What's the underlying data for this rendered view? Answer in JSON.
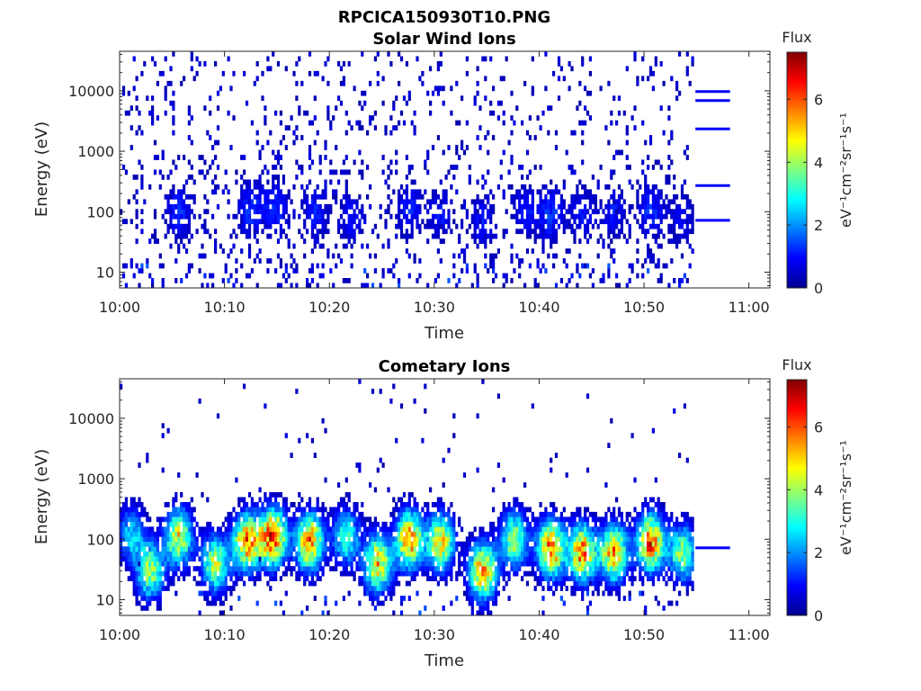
{
  "figure": {
    "title": "RPCICA150930T10.PNG"
  },
  "colormap": [
    "#00008F",
    "#0000FF",
    "#0080FF",
    "#00FFFF",
    "#80FF80",
    "#FFFF00",
    "#FF8000",
    "#FF0000",
    "#800000"
  ],
  "chart_data": [
    {
      "type": "heatmap",
      "title": "Solar Wind Ions",
      "xlabel": "Time",
      "ylabel": "Energy (eV)",
      "x_ticks": [
        "10:00",
        "10:10",
        "10:20",
        "10:30",
        "10:40",
        "10:50",
        "11:00"
      ],
      "x_range_minutes": [
        0,
        62
      ],
      "y_scale": "log",
      "y_ticks": [
        10,
        100,
        1000,
        10000
      ],
      "y_ticks_labels": [
        "10",
        "100",
        "1000",
        "10000"
      ],
      "y_range": [
        5.5,
        45000
      ],
      "colorbar": {
        "label": "Flux",
        "unit": "eV⁻¹cm⁻²sr⁻¹s⁻¹",
        "range": [
          0,
          7.5
        ],
        "ticks": [
          "0",
          "2",
          "4",
          "6"
        ]
      },
      "bursts": [
        {
          "t": 5.5,
          "e": 100,
          "flux": 1.2
        },
        {
          "t": 12.3,
          "e": 110,
          "flux": 1.3
        },
        {
          "t": 14.8,
          "e": 120,
          "flux": 1.2
        },
        {
          "t": 18.5,
          "e": 100,
          "flux": 1.1
        },
        {
          "t": 22.0,
          "e": 80,
          "flux": 1.0
        },
        {
          "t": 27.5,
          "e": 110,
          "flux": 1.1
        },
        {
          "t": 30.5,
          "e": 90,
          "flux": 1.0
        },
        {
          "t": 34.5,
          "e": 70,
          "flux": 1.0
        },
        {
          "t": 38.5,
          "e": 100,
          "flux": 1.0
        },
        {
          "t": 41.0,
          "e": 90,
          "flux": 1.3
        },
        {
          "t": 44.0,
          "e": 90,
          "flux": 1.0
        },
        {
          "t": 47.0,
          "e": 100,
          "flux": 1.0
        },
        {
          "t": 50.5,
          "e": 110,
          "flux": 1.3
        },
        {
          "t": 53.5,
          "e": 80,
          "flux": 0.9
        }
      ],
      "background_rate": 0.11,
      "end_time": 54.7,
      "reference_lines": [
        {
          "e": 9700,
          "t_end": 58.2
        },
        {
          "e": 6900,
          "t_end": 58.2
        },
        {
          "e": 2350,
          "t_end": 58.2
        },
        {
          "e": 270,
          "t_end": 58.2
        },
        {
          "e": 72,
          "t_end": 58.2
        }
      ]
    },
    {
      "type": "heatmap",
      "title": "Cometary Ions",
      "xlabel": "Time",
      "ylabel": "Energy (eV)",
      "x_ticks": [
        "10:00",
        "10:10",
        "10:20",
        "10:30",
        "10:40",
        "10:50",
        "11:00"
      ],
      "x_range_minutes": [
        0,
        62
      ],
      "y_scale": "log",
      "y_ticks": [
        10,
        100,
        1000,
        10000
      ],
      "y_ticks_labels": [
        "10",
        "100",
        "1000",
        "10000"
      ],
      "y_range": [
        5.5,
        45000
      ],
      "colorbar": {
        "label": "Flux",
        "unit": "eV⁻¹cm⁻²sr⁻¹s⁻¹",
        "range": [
          0,
          7.5
        ],
        "ticks": [
          "0",
          "2",
          "4",
          "6"
        ]
      },
      "bursts": [
        {
          "t": 1.0,
          "e": 120,
          "flux": 2.5
        },
        {
          "t": 2.8,
          "e": 30,
          "flux": 4.0
        },
        {
          "t": 5.5,
          "e": 110,
          "flux": 4.6
        },
        {
          "t": 9.0,
          "e": 40,
          "flux": 4.2
        },
        {
          "t": 12.0,
          "e": 90,
          "flux": 5.6
        },
        {
          "t": 14.5,
          "e": 110,
          "flux": 6.2
        },
        {
          "t": 18.0,
          "e": 90,
          "flux": 5.6
        },
        {
          "t": 21.5,
          "e": 110,
          "flux": 3.2
        },
        {
          "t": 24.5,
          "e": 40,
          "flux": 5.0
        },
        {
          "t": 27.5,
          "e": 100,
          "flux": 5.6
        },
        {
          "t": 30.5,
          "e": 90,
          "flux": 4.8
        },
        {
          "t": 34.5,
          "e": 30,
          "flux": 5.5
        },
        {
          "t": 37.5,
          "e": 100,
          "flux": 4.0
        },
        {
          "t": 41.0,
          "e": 70,
          "flux": 5.8
        },
        {
          "t": 44.0,
          "e": 60,
          "flux": 5.6
        },
        {
          "t": 47.0,
          "e": 60,
          "flux": 5.4
        },
        {
          "t": 50.5,
          "e": 90,
          "flux": 5.8
        },
        {
          "t": 53.5,
          "e": 60,
          "flux": 3.8
        }
      ],
      "background_rate": 0.02,
      "end_time": 54.7,
      "reference_lines": [
        {
          "e": 72,
          "t_end": 58.2
        }
      ]
    }
  ]
}
